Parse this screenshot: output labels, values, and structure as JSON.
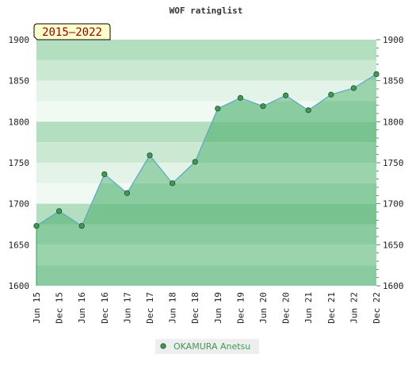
{
  "chart_data": {
    "type": "area",
    "title": "WOF ratinglist",
    "badge": "2015–2022",
    "x": [
      "Jun 15",
      "Dec 15",
      "Jun 16",
      "Dec 16",
      "Jun 17",
      "Dec 17",
      "Jun 18",
      "Dec 18",
      "Jun 19",
      "Dec 19",
      "Jun 20",
      "Dec 20",
      "Jun 21",
      "Dec 21",
      "Jun 22",
      "Dec 22"
    ],
    "series": [
      {
        "name": "OKAMURA Anetsu",
        "values": [
          1673,
          1691,
          1673,
          1736,
          1713,
          1759,
          1725,
          1751,
          1816,
          1829,
          1819,
          1832,
          1814,
          1833,
          1841,
          1858
        ]
      }
    ],
    "ylim": [
      1600,
      1900
    ],
    "yticks": [
      1600,
      1650,
      1700,
      1750,
      1800,
      1850,
      1900
    ],
    "grid": "horizontal bands",
    "legend": "bottom",
    "colors": {
      "line": "#5ba7c9",
      "marker": "#3f9a56",
      "band_dark": "#b3dec0",
      "band_mid": "#cbe8d3",
      "band_light": "#e3f3e8",
      "band_pale": "#f1f9f3",
      "fill_dark": "#79c391",
      "fill_mid": "#8acb9f",
      "fill_light": "#9bd3ad",
      "badge_bg": "#ffffcc",
      "legend_text": "#3e9a56"
    }
  }
}
